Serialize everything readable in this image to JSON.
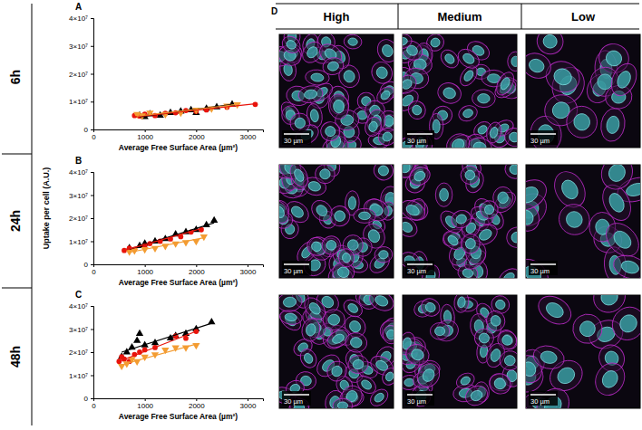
{
  "chart_data": [
    {
      "type": "scatter",
      "label": "A",
      "xlabel": "Average Free Surface Area (µm²)",
      "xlim": [
        0,
        3300
      ],
      "xticks": [
        0,
        1000,
        2000,
        3000
      ],
      "ylim": [
        0,
        40000000
      ],
      "yticks": [
        0,
        {
          "value": 10000000,
          "label": "1×10⁷"
        },
        {
          "value": 20000000,
          "label": "2×10⁷"
        },
        {
          "value": 30000000,
          "label": "3×10⁷"
        },
        {
          "value": 40000000,
          "label": "4×10⁷"
        }
      ],
      "series": [
        {
          "color": "#000000",
          "marker": "triangle",
          "x": [
            900,
            1000,
            1100,
            1300,
            1500,
            1700,
            1900,
            2000,
            2200,
            2400,
            2700
          ],
          "values": [
            5000000,
            4500000,
            5500000,
            5000000,
            6000000,
            6500000,
            7000000,
            6000000,
            7500000,
            8000000,
            9000000
          ]
        },
        {
          "color": "#e8140c",
          "marker": "circle",
          "x": [
            800,
            900,
            1000,
            1200,
            1400,
            1600,
            1800,
            2000,
            2200,
            2600,
            3150
          ],
          "values": [
            5000000,
            4800000,
            5500000,
            5000000,
            5800000,
            6000000,
            6800000,
            6500000,
            7000000,
            8000000,
            9000000
          ]
        },
        {
          "color": "#f39c32",
          "marker": "triangle-down",
          "x": [
            850,
            950,
            1100,
            1400,
            1700,
            2000,
            2300,
            2600,
            2800
          ],
          "values": [
            5500000,
            5000000,
            6000000,
            5500000,
            6000000,
            7000000,
            7500000,
            8500000,
            9000000
          ]
        },
        {
          "type": "line",
          "line_style": "solid",
          "color": "#000000",
          "x": [
            900,
            2700
          ],
          "values": [
            4500000,
            9000000
          ]
        },
        {
          "type": "line",
          "line_style": "solid",
          "color": "#e8140c",
          "x": [
            800,
            3150
          ],
          "values": [
            4500000,
            9200000
          ]
        },
        {
          "type": "line",
          "line_style": "solid",
          "color": "#f39c32",
          "x": [
            850,
            2800
          ],
          "values": [
            4800000,
            9000000
          ]
        }
      ]
    },
    {
      "type": "scatter",
      "label": "B",
      "xlabel": "Average Free Surface Area (µm²)",
      "ylabel": "Uptake per cell (A.U.)",
      "xlim": [
        0,
        3300
      ],
      "xticks": [
        0,
        1000,
        2000,
        3000
      ],
      "ylim": [
        0,
        40000000
      ],
      "yticks": [
        0,
        {
          "value": 10000000,
          "label": "1×10⁷"
        },
        {
          "value": 20000000,
          "label": "2×10⁷"
        },
        {
          "value": 30000000,
          "label": "3×10⁷"
        },
        {
          "value": 40000000,
          "label": "4×10⁷"
        }
      ],
      "series": [
        {
          "color": "#000000",
          "marker": "triangle",
          "x": [
            700,
            900,
            1000,
            1200,
            1400,
            1600,
            1800,
            2000,
            2200,
            2350
          ],
          "values": [
            7000000,
            8000000,
            9000000,
            10000000,
            11000000,
            13000000,
            14000000,
            15000000,
            17000000,
            19000000
          ]
        },
        {
          "color": "#e8140c",
          "marker": "circle",
          "x": [
            600,
            700,
            800,
            1000,
            1100,
            1300,
            1500,
            1700,
            1900,
            2100
          ],
          "values": [
            6000000,
            7000000,
            6500000,
            8000000,
            9000000,
            10000000,
            11000000,
            12000000,
            14000000,
            15000000
          ]
        },
        {
          "color": "#f39c32",
          "marker": "triangle-down",
          "x": [
            700,
            800,
            1000,
            1200,
            1400,
            1600,
            1800,
            2000,
            2150
          ],
          "values": [
            5500000,
            6000000,
            6500000,
            7000000,
            8000000,
            9000000,
            9500000,
            10000000,
            12000000
          ]
        },
        {
          "type": "line",
          "line_style": "solid",
          "color": "#000000",
          "x": [
            700,
            2350
          ],
          "values": [
            6500000,
            18000000
          ]
        },
        {
          "type": "line",
          "line_style": "solid",
          "color": "#e8140c",
          "x": [
            600,
            2100
          ],
          "values": [
            6000000,
            15500000
          ]
        },
        {
          "type": "line",
          "line_style": "solid",
          "color": "#f39c32",
          "x": [
            700,
            2150
          ],
          "values": [
            5200000,
            11500000
          ]
        }
      ]
    },
    {
      "type": "scatter",
      "label": "C",
      "xlabel": "Average Free Surface Area (µm²)",
      "xlim": [
        0,
        3300
      ],
      "xticks": [
        0,
        1000,
        2000,
        3000
      ],
      "ylim": [
        0,
        40000000
      ],
      "yticks": [
        0,
        {
          "value": 10000000,
          "label": "1×10⁷"
        },
        {
          "value": 20000000,
          "label": "2×10⁷"
        },
        {
          "value": 30000000,
          "label": "3×10⁷"
        },
        {
          "value": 40000000,
          "label": "4×10⁷"
        }
      ],
      "series": [
        {
          "color": "#000000",
          "marker": "triangle",
          "x": [
            550,
            650,
            750,
            850,
            900,
            1000,
            1200,
            1500,
            1600,
            1800,
            2000,
            2300
          ],
          "values": [
            18000000,
            20000000,
            22000000,
            25000000,
            28000000,
            23000000,
            24000000,
            26000000,
            27000000,
            28000000,
            30000000,
            33000000
          ]
        },
        {
          "color": "#e8140c",
          "marker": "circle",
          "x": [
            500,
            550,
            600,
            700,
            800,
            900,
            1000,
            1200,
            1600,
            1800,
            2000
          ],
          "values": [
            16000000,
            18000000,
            17000000,
            16000000,
            19000000,
            20000000,
            21000000,
            22000000,
            27000000,
            26000000,
            29000000
          ]
        },
        {
          "color": "#f39c32",
          "marker": "triangle-down",
          "x": [
            550,
            650,
            750,
            850,
            1000,
            1200,
            1400,
            1600,
            1800,
            2000
          ],
          "values": [
            14000000,
            15000000,
            17000000,
            16000000,
            18000000,
            19000000,
            21000000,
            22000000,
            22000000,
            23000000
          ]
        },
        {
          "type": "line",
          "line_style": "solid",
          "color": "#000000",
          "x": [
            550,
            2300
          ],
          "values": [
            20000000,
            32500000
          ]
        },
        {
          "type": "line",
          "line_style": "solid",
          "color": "#e8140c",
          "x": [
            500,
            2000
          ],
          "values": [
            16000000,
            29000000
          ]
        },
        {
          "type": "line",
          "line_style": "solid",
          "color": "#f39c32",
          "x": [
            550,
            2000
          ],
          "values": [
            14500000,
            23500000
          ]
        }
      ]
    }
  ],
  "row_labels": [
    "6h",
    "24h",
    "48h"
  ],
  "panel_d": {
    "label": "D",
    "columns": [
      "High",
      "Medium",
      "Low"
    ],
    "scale_bar": "30 µm"
  }
}
